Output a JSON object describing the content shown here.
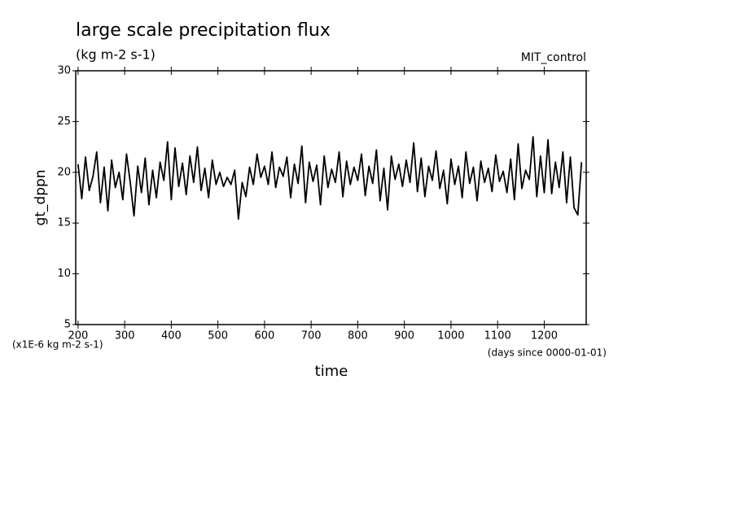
{
  "chart_data": {
    "type": "line",
    "title": "large scale precipitation flux",
    "subtitle": "(kg m-2 s-1)",
    "annotation": "MIT_control",
    "y_label": "gt_dppn",
    "x_label": "time",
    "y_units": "(x1E-6 kg m-2 s-1)",
    "x_units": "(days since 0000-01-01)",
    "xlim": [
      195,
      1290
    ],
    "ylim": [
      5,
      30
    ],
    "xticks": [
      200,
      300,
      400,
      500,
      600,
      700,
      800,
      900,
      1000,
      1100,
      1200
    ],
    "yticks": [
      5,
      10,
      15,
      20,
      25,
      30
    ],
    "x": [
      200,
      208,
      216,
      224,
      232,
      240,
      248,
      256,
      264,
      272,
      280,
      288,
      296,
      304,
      312,
      320,
      328,
      336,
      344,
      352,
      360,
      368,
      376,
      384,
      392,
      400,
      408,
      416,
      424,
      432,
      440,
      448,
      456,
      464,
      472,
      480,
      488,
      496,
      504,
      512,
      520,
      528,
      536,
      544,
      552,
      560,
      568,
      576,
      584,
      592,
      600,
      608,
      616,
      624,
      632,
      640,
      648,
      656,
      664,
      672,
      680,
      688,
      696,
      704,
      712,
      720,
      728,
      736,
      744,
      752,
      760,
      768,
      776,
      784,
      792,
      800,
      808,
      816,
      824,
      832,
      840,
      848,
      856,
      864,
      872,
      880,
      888,
      896,
      904,
      912,
      920,
      928,
      936,
      944,
      952,
      960,
      968,
      976,
      984,
      992,
      1000,
      1008,
      1016,
      1024,
      1032,
      1040,
      1048,
      1056,
      1064,
      1072,
      1080,
      1088,
      1096,
      1104,
      1112,
      1120,
      1128,
      1136,
      1144,
      1152,
      1160,
      1168,
      1176,
      1184,
      1192,
      1200,
      1208,
      1216,
      1224,
      1232,
      1240,
      1248,
      1256,
      1264,
      1272,
      1280
    ],
    "series": [
      {
        "color": "#000000",
        "values": [
          20.8,
          17.4,
          21.5,
          18.2,
          19.6,
          22.0,
          17.0,
          20.5,
          16.2,
          21.2,
          18.5,
          20.0,
          17.3,
          21.8,
          19.0,
          15.7,
          20.6,
          18.0,
          21.4,
          16.8,
          20.2,
          17.5,
          21.0,
          19.2,
          23.0,
          17.3,
          22.4,
          18.6,
          20.9,
          17.8,
          21.6,
          19.0,
          22.5,
          18.2,
          20.4,
          17.5,
          21.2,
          18.8,
          20.0,
          18.6,
          19.5,
          18.8,
          20.2,
          15.4,
          19.0,
          17.6,
          20.5,
          18.8,
          21.8,
          19.5,
          20.6,
          18.8,
          22.0,
          18.5,
          20.5,
          19.6,
          21.5,
          17.5,
          20.8,
          18.9,
          22.6,
          17.0,
          21.0,
          19.1,
          20.7,
          16.8,
          21.6,
          18.5,
          20.3,
          19.0,
          22.0,
          17.6,
          21.1,
          18.8,
          20.5,
          19.2,
          21.8,
          17.7,
          20.6,
          18.9,
          22.2,
          17.2,
          20.4,
          16.3,
          21.6,
          19.3,
          20.8,
          18.6,
          21.2,
          19.0,
          22.9,
          18.1,
          21.4,
          17.6,
          20.6,
          19.2,
          22.1,
          18.4,
          20.2,
          16.9,
          21.3,
          18.8,
          20.6,
          17.5,
          22.0,
          18.9,
          20.5,
          17.2,
          21.1,
          19.0,
          20.4,
          18.1,
          21.7,
          19.1,
          20.1,
          18.0,
          21.3,
          17.3,
          22.8,
          18.4,
          20.2,
          19.3,
          23.5,
          17.6,
          21.6,
          18.0,
          23.2,
          17.9,
          21.0,
          18.5,
          22.0,
          17.0,
          21.5,
          16.5,
          15.8,
          21.0
        ]
      }
    ]
  }
}
